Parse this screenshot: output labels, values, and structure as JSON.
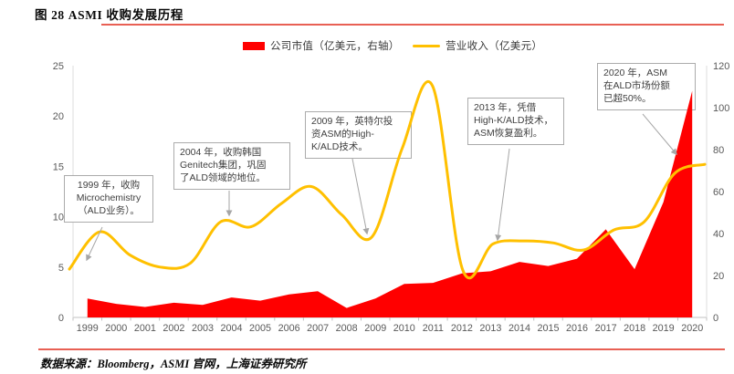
{
  "figure": {
    "title": "图 28 ASMI 收购发展历程",
    "source": "数据来源：Bloomberg，ASMI 官网，上海证券研究所"
  },
  "legend": [
    {
      "label": "公司市值（亿美元，右轴）",
      "swatch": "area",
      "color": "#ff0000"
    },
    {
      "label": "营业收入（亿美元）",
      "swatch": "line",
      "color": "#ffc000"
    }
  ],
  "chart_data": {
    "type": "combo",
    "categories": [
      "1999",
      "2000",
      "2001",
      "2002",
      "2003",
      "2004",
      "2005",
      "2006",
      "2007",
      "2008",
      "2009",
      "2010",
      "2011",
      "2012",
      "2013",
      "2014",
      "2015",
      "2016",
      "2017",
      "2018",
      "2019",
      "2020"
    ],
    "series": [
      {
        "name": "公司市值（亿美元，右轴）",
        "type": "area",
        "axis": "right",
        "color": "#ff0000",
        "values": [
          9,
          6.5,
          5,
          7,
          6,
          9.5,
          8,
          11,
          12.5,
          4.5,
          9,
          16,
          16.5,
          21,
          22,
          26.5,
          24.5,
          28,
          42,
          23,
          55,
          108
        ]
      },
      {
        "name": "营业收入（亿美元）",
        "type": "line",
        "axis": "left",
        "color": "#ffc000",
        "smooth": true,
        "values": [
          4.8,
          8.5,
          6.2,
          5.0,
          5.4,
          9.5,
          9.0,
          11.3,
          13.0,
          10.2,
          8.0,
          16.8,
          23.0,
          4.7,
          7.3,
          7.6,
          7.4,
          6.7,
          8.7,
          9.5,
          14.3,
          15.2
        ]
      }
    ],
    "left_axis": {
      "min": 0,
      "max": 25,
      "ticks": [
        0,
        5,
        10,
        15,
        20,
        25
      ]
    },
    "right_axis": {
      "min": 0,
      "max": 120,
      "ticks": [
        0,
        20,
        40,
        60,
        80,
        100,
        120
      ]
    },
    "grid": false,
    "legend_position": "top"
  },
  "annotations": [
    {
      "year": "1999",
      "text": "1999 年，收购\nMicrochemistry\n（ALD业务）。"
    },
    {
      "year": "2004",
      "text": "2004 年，收购韩国\nGenitech集团，巩固\n了ALD领域的地位。"
    },
    {
      "year": "2009",
      "text": "2009 年，英特尔投\n资ASM的High-\nK/ALD技术。"
    },
    {
      "year": "2013",
      "text": "2013 年，凭借\nHigh-K/ALD技术，\nASM恢复盈利。"
    },
    {
      "year": "2020",
      "text": "2020 年，ASM\n在ALD市场份额\n已超50%。"
    }
  ]
}
